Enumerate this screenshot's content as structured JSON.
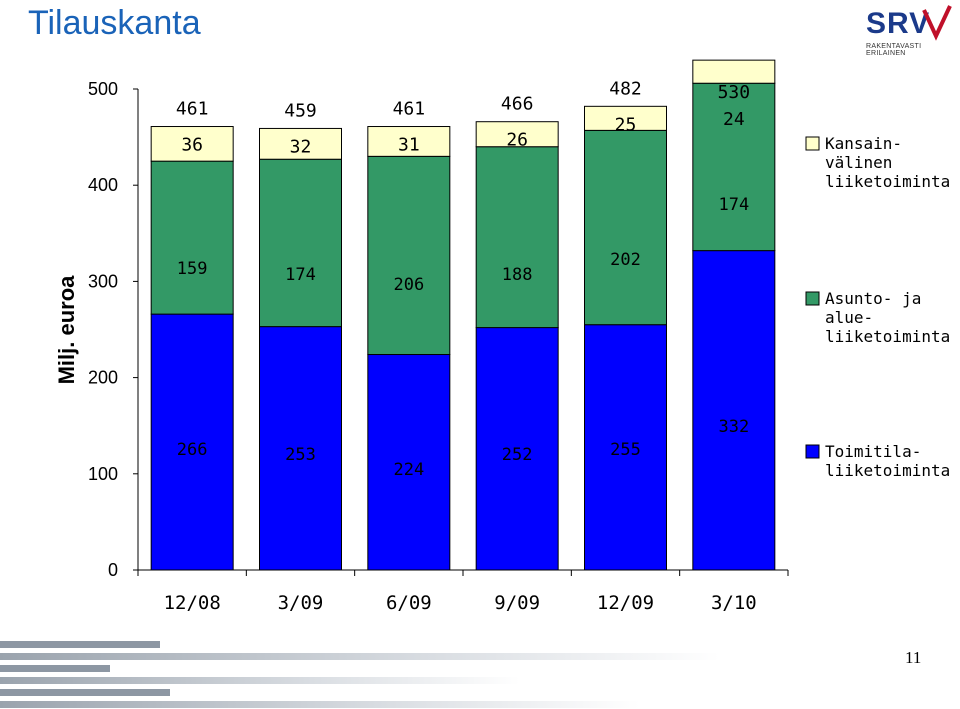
{
  "header": {
    "title": "Tilauskanta",
    "logo_text": "SRV",
    "logo_tagline": "RAKENTAVASTI ERILAINEN"
  },
  "footer": {
    "page_number": "11"
  },
  "chart_data": {
    "type": "bar",
    "stacked": true,
    "title": "",
    "xlabel": "",
    "ylabel": "Milj. euroa",
    "ylim": [
      0,
      500
    ],
    "yticks": [
      "0",
      "100",
      "200",
      "300",
      "400",
      "500"
    ],
    "categories": [
      "12/08",
      "3/09",
      "6/09",
      "9/09",
      "12/09",
      "3/10"
    ],
    "totals": [
      461,
      459,
      461,
      466,
      482,
      530
    ],
    "series": [
      {
        "name": "Toimitila-\nliiketoiminta",
        "color": "#0000ff",
        "values": [
          266,
          253,
          224,
          252,
          255,
          332
        ]
      },
      {
        "name": "Asunto- ja\nalue-\nliiketoiminta",
        "color": "#339966",
        "values": [
          159,
          174,
          206,
          188,
          202,
          174
        ]
      },
      {
        "name": "Kansain-\nvälinen\nliiketoiminta",
        "color": "#ffffcc",
        "values": [
          36,
          32,
          31,
          26,
          25,
          24
        ]
      }
    ],
    "legend_position": "right",
    "grid": false
  }
}
